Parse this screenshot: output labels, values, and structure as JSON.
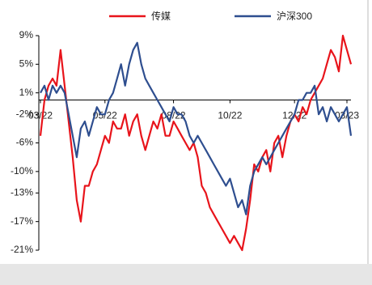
{
  "chart_data": {
    "type": "line",
    "categories": [
      "03/22",
      null,
      null,
      null,
      null,
      null,
      null,
      null,
      null,
      null,
      null,
      null,
      null,
      null,
      null,
      null,
      "05/22",
      null,
      null,
      null,
      null,
      null,
      null,
      null,
      null,
      null,
      null,
      null,
      null,
      null,
      null,
      null,
      null,
      "08/22",
      null,
      null,
      null,
      null,
      null,
      null,
      null,
      null,
      null,
      null,
      null,
      null,
      null,
      "10/22",
      null,
      null,
      null,
      null,
      null,
      null,
      null,
      null,
      null,
      null,
      null,
      null,
      null,
      null,
      null,
      "12/22",
      null,
      null,
      null,
      null,
      null,
      null,
      null,
      null,
      null,
      null,
      null,
      null,
      "03/23",
      null
    ],
    "series": [
      {
        "name": "传媒",
        "color": "#e8141b",
        "values": [
          -5,
          0,
          2,
          3,
          2,
          7,
          2,
          -3,
          -8,
          -14,
          -17,
          -12,
          -12,
          -10,
          -9,
          -7,
          -5,
          -6,
          -3,
          -4,
          -4,
          -2,
          -5,
          -3,
          -2,
          -5,
          -7,
          -5,
          -3,
          -4,
          -2,
          -5,
          -5,
          -3,
          -4,
          -5,
          -6,
          -7,
          -6,
          -8,
          -12,
          -13,
          -15,
          -16,
          -17,
          -18,
          -19,
          -20,
          -19,
          -20,
          -21,
          -18,
          -14,
          -9,
          -10,
          -8,
          -7,
          -10,
          -6,
          -5,
          -8,
          -5,
          -3,
          -2,
          -3,
          -1,
          -2,
          0,
          1,
          2,
          3,
          5,
          7,
          6,
          4,
          9,
          7,
          5
        ]
      },
      {
        "name": "沪深300",
        "color": "#2e4e8f",
        "values": [
          1,
          2,
          0,
          2,
          1,
          2,
          1,
          -2,
          -5,
          -8,
          -4,
          -3,
          -5,
          -3,
          -1,
          -2,
          -2,
          0,
          1,
          3,
          5,
          2,
          5,
          7,
          8,
          5,
          3,
          2,
          1,
          0,
          -1,
          -2,
          -3,
          -1,
          -2,
          -2,
          -3,
          -5,
          -6,
          -5,
          -6,
          -7,
          -8,
          -9,
          -10,
          -11,
          -12,
          -11,
          -13,
          -15,
          -14,
          -16,
          -12,
          -10,
          -9,
          -8,
          -9,
          -8,
          -7,
          -6,
          -5,
          -4,
          -3,
          -2,
          0,
          0,
          1,
          1,
          2,
          -2,
          -1,
          -3,
          -1,
          -2,
          -3,
          -2,
          -1,
          -5
        ]
      }
    ],
    "ylim": [
      -21,
      9
    ],
    "yticks": [
      {
        "value": 9,
        "label": "9%"
      },
      {
        "value": 5,
        "label": "5%"
      },
      {
        "value": 1,
        "label": "1%"
      },
      {
        "value": -2,
        "label": "-2%"
      },
      {
        "value": -6,
        "label": "-6%"
      },
      {
        "value": -10,
        "label": "-10%"
      },
      {
        "value": -13,
        "label": "-13%"
      },
      {
        "value": -17,
        "label": "-17%"
      },
      {
        "value": -21,
        "label": "-21%"
      }
    ],
    "legend": "top"
  }
}
